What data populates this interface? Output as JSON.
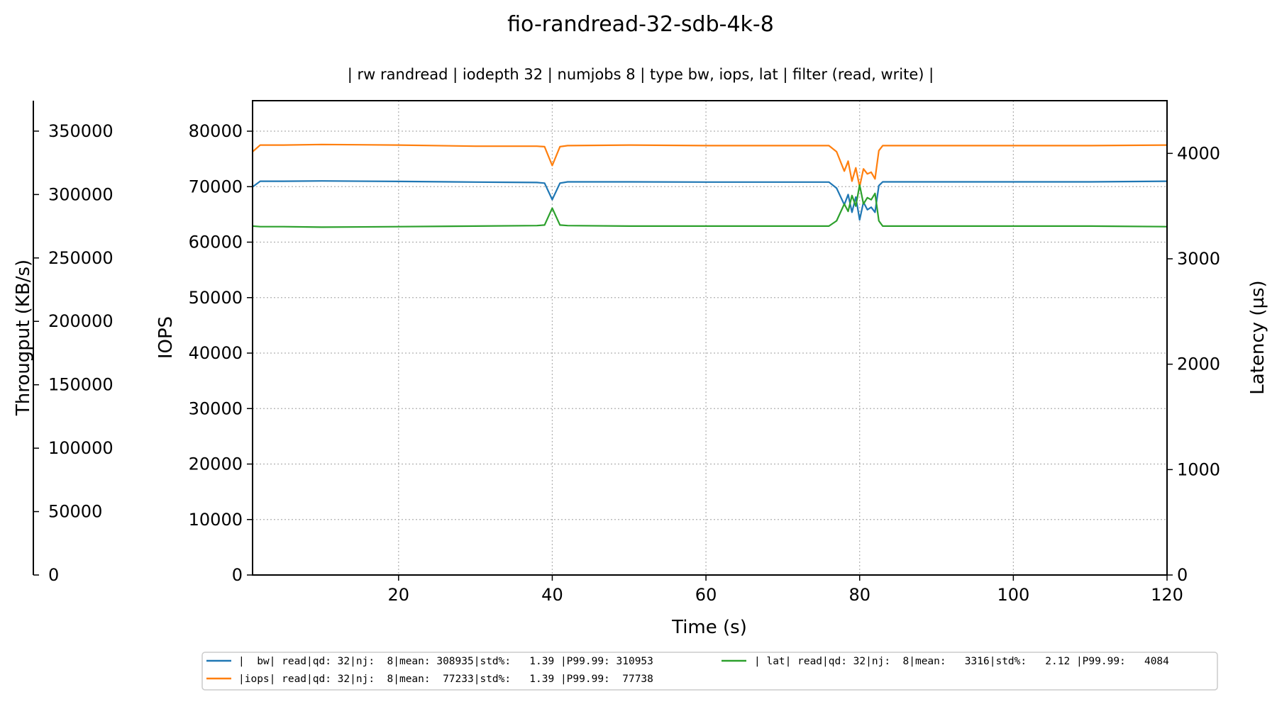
{
  "chart_data": {
    "type": "line",
    "title": "fio-randread-32-sdb-4k-8",
    "subtitle": "| rw randread | iodepth 32 | numjobs 8 | type bw, iops, lat | filter (read, write) |",
    "xlabel": "Time (s)",
    "xlim": [
      1,
      120
    ],
    "x_ticks": [
      20,
      40,
      60,
      80,
      100,
      120
    ],
    "grid": true,
    "legend_position": "bottom",
    "axes": {
      "iops": {
        "label": "IOPS",
        "side": "left",
        "ylim": [
          0,
          85500
        ],
        "ticks": [
          0,
          10000,
          20000,
          30000,
          40000,
          50000,
          60000,
          70000,
          80000
        ]
      },
      "throughput": {
        "label": "Througput (KB/s)",
        "side": "left-outer",
        "ylim": [
          0,
          374000
        ],
        "ticks": [
          0,
          50000,
          100000,
          150000,
          200000,
          250000,
          300000,
          350000
        ]
      },
      "latency": {
        "label": "Latency (µs)",
        "side": "right",
        "ylim": [
          0,
          4500
        ],
        "ticks": [
          0,
          1000,
          2000,
          3000,
          4000
        ]
      }
    },
    "series": [
      {
        "name": "|  bw| read|qd: 32|nj:  8|mean: 308935|std%:   1.39 |P99.99: 310953",
        "axis": "throughput",
        "color": "#1f77b4",
        "x": [
          1,
          2,
          5,
          10,
          20,
          30,
          38,
          39,
          40,
          41,
          42,
          50,
          60,
          70,
          76,
          77,
          78,
          78.5,
          79,
          79.5,
          80,
          80.5,
          81,
          81.5,
          82,
          82.5,
          83,
          90,
          100,
          110,
          120
        ],
        "y": [
          306000,
          310500,
          310500,
          310700,
          310300,
          309800,
          309500,
          309000,
          296000,
          309000,
          310000,
          310000,
          309800,
          309800,
          309800,
          305000,
          292000,
          300000,
          286000,
          298000,
          280000,
          294000,
          288000,
          290000,
          286000,
          307000,
          310000,
          310000,
          310000,
          310000,
          310500
        ]
      },
      {
        "name": "|iops| read|qd: 32|nj:  8|mean:  77233|std%:   1.39 |P99.99:  77738",
        "axis": "iops",
        "color": "#ff7f0e",
        "x": [
          1,
          2,
          5,
          10,
          20,
          30,
          38,
          39,
          40,
          41,
          42,
          50,
          60,
          70,
          76,
          77,
          78,
          78.5,
          79,
          79.5,
          80,
          80.5,
          81,
          81.5,
          82,
          82.5,
          83,
          90,
          100,
          110,
          120
        ],
        "y": [
          76300,
          77500,
          77500,
          77600,
          77500,
          77300,
          77300,
          77200,
          73800,
          77200,
          77400,
          77500,
          77400,
          77400,
          77400,
          76300,
          72800,
          74600,
          71000,
          73400,
          70000,
          73200,
          72300,
          72600,
          71400,
          76500,
          77400,
          77400,
          77400,
          77400,
          77500
        ]
      },
      {
        "name": "| lat| read|qd: 32|nj:  8|mean:   3316|std%:   2.12 |P99.99:   4084",
        "axis": "latency",
        "color": "#2ca02c",
        "x": [
          1,
          2,
          5,
          10,
          20,
          30,
          38,
          39,
          40,
          41,
          42,
          50,
          60,
          70,
          76,
          77,
          78,
          78.5,
          79,
          79.5,
          80,
          80.5,
          81,
          81.5,
          82,
          82.5,
          83,
          90,
          100,
          110,
          120
        ],
        "y": [
          3310,
          3305,
          3305,
          3300,
          3305,
          3310,
          3315,
          3320,
          3480,
          3320,
          3315,
          3310,
          3310,
          3310,
          3310,
          3360,
          3520,
          3450,
          3600,
          3500,
          3700,
          3520,
          3580,
          3560,
          3620,
          3360,
          3310,
          3310,
          3310,
          3310,
          3305
        ]
      }
    ]
  }
}
